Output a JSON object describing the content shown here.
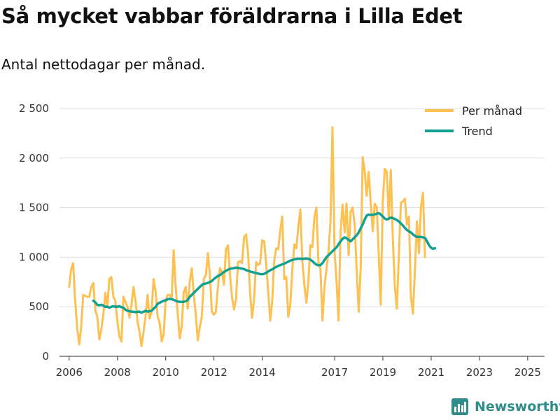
{
  "header": {
    "title": "Så mycket vabbar föräldrarna i Lilla Edet",
    "subtitle": "Antal nettodagar per månad."
  },
  "brand": {
    "name": "Newsworthy",
    "logo": "newsworthy-logo"
  },
  "colors": {
    "per_month": "#fdc052",
    "trend": "#12a090",
    "grid": "#dddddd",
    "axis": "#333333",
    "brand": "#2e8c8a"
  },
  "chart_data": {
    "type": "line",
    "title": "Så mycket vabbar föräldrarna i Lilla Edet",
    "subtitle": "Antal nettodagar per månad.",
    "xlabel": "",
    "ylabel": "",
    "x_unit": "year (decimal, month midpoints)",
    "ylim": [
      0,
      2500
    ],
    "xlim": [
      2005.6,
      2025.7
    ],
    "y_ticks": [
      0,
      500,
      1000,
      1500,
      2000,
      2500
    ],
    "y_tick_labels": [
      "0",
      "500",
      "1 000",
      "1 500",
      "2 000",
      "2 500"
    ],
    "x_ticks": [
      2006,
      2008,
      2010,
      2012,
      2014,
      2017,
      2019,
      2021,
      2023,
      2025
    ],
    "x_tick_labels": [
      "2006",
      "2008",
      "2010",
      "2012",
      "2014",
      "2017",
      "2019",
      "2021",
      "2023",
      "2025"
    ],
    "legend_position": "top-right",
    "grid": true,
    "series": [
      {
        "name": "Per månad",
        "color": "#fdc052",
        "start": 2006.0,
        "step": 0.0833,
        "values": [
          700,
          880,
          940,
          560,
          280,
          120,
          300,
          620,
          610,
          600,
          600,
          700,
          740,
          470,
          400,
          170,
          270,
          420,
          640,
          500,
          780,
          800,
          600,
          560,
          350,
          200,
          150,
          600,
          550,
          500,
          390,
          520,
          700,
          560,
          350,
          250,
          100,
          250,
          400,
          620,
          380,
          450,
          780,
          650,
          400,
          340,
          150,
          220,
          560,
          620,
          620,
          580,
          1070,
          700,
          430,
          180,
          300,
          650,
          700,
          480,
          750,
          890,
          620,
          420,
          160,
          300,
          400,
          780,
          820,
          1040,
          820,
          450,
          420,
          450,
          700,
          890,
          850,
          720,
          1080,
          1120,
          830,
          600,
          470,
          580,
          950,
          960,
          940,
          1200,
          1230,
          1040,
          640,
          390,
          580,
          950,
          920,
          940,
          1170,
          1160,
          940,
          660,
          360,
          560,
          960,
          1090,
          1080,
          1270,
          1410,
          780,
          800,
          400,
          520,
          880,
          1130,
          1090,
          1310,
          1480,
          960,
          720,
          540,
          760,
          1120,
          1100,
          1410,
          1500,
          950,
          880,
          360,
          700,
          880,
          1060,
          1350,
          2310,
          1060,
          750,
          360,
          1250,
          1530,
          1250,
          1540,
          1020,
          1460,
          1500,
          1340,
          870,
          450,
          880,
          2010,
          1870,
          1620,
          1860,
          1550,
          1260,
          1540,
          1500,
          1030,
          520,
          1560,
          1890,
          1860,
          1380,
          1880,
          1180,
          700,
          480,
          1020,
          1550,
          1560,
          1590,
          1330,
          1410,
          600,
          430,
          880,
          1360,
          1040,
          1510,
          1650,
          1000
        ]
      },
      {
        "name": "Trend",
        "color": "#12a090",
        "start": 2007.0,
        "step": 0.0833,
        "values": [
          560,
          545,
          520,
          515,
          520,
          512,
          500,
          500,
          490,
          500,
          505,
          500,
          500,
          505,
          495,
          490,
          470,
          460,
          455,
          450,
          450,
          445,
          450,
          450,
          440,
          450,
          460,
          450,
          455,
          460,
          480,
          500,
          530,
          540,
          550,
          560,
          565,
          575,
          580,
          575,
          570,
          560,
          552,
          550,
          548,
          550,
          556,
          570,
          600,
          620,
          640,
          660,
          680,
          700,
          720,
          730,
          735,
          740,
          750,
          760,
          780,
          795,
          810,
          820,
          835,
          850,
          862,
          874,
          882,
          886,
          890,
          895,
          892,
          888,
          885,
          880,
          870,
          862,
          855,
          850,
          845,
          840,
          834,
          830,
          828,
          832,
          843,
          855,
          868,
          878,
          890,
          902,
          912,
          920,
          928,
          936,
          945,
          955,
          965,
          972,
          978,
          982,
          985,
          984,
          983,
          985,
          986,
          984,
          975,
          960,
          940,
          925,
          918,
          920,
          940,
          970,
          1000,
          1020,
          1040,
          1060,
          1080,
          1100,
          1130,
          1160,
          1185,
          1200,
          1190,
          1175,
          1160,
          1180,
          1200,
          1220,
          1250,
          1290,
          1330,
          1380,
          1420,
          1430,
          1425,
          1428,
          1432,
          1438,
          1445,
          1430,
          1410,
          1390,
          1380,
          1390,
          1400,
          1395,
          1385,
          1375,
          1360,
          1340,
          1320,
          1295,
          1275,
          1260,
          1250,
          1230,
          1215,
          1205,
          1205,
          1205,
          1200,
          1195,
          1160,
          1120,
          1095,
          1085,
          1090
        ]
      }
    ]
  }
}
